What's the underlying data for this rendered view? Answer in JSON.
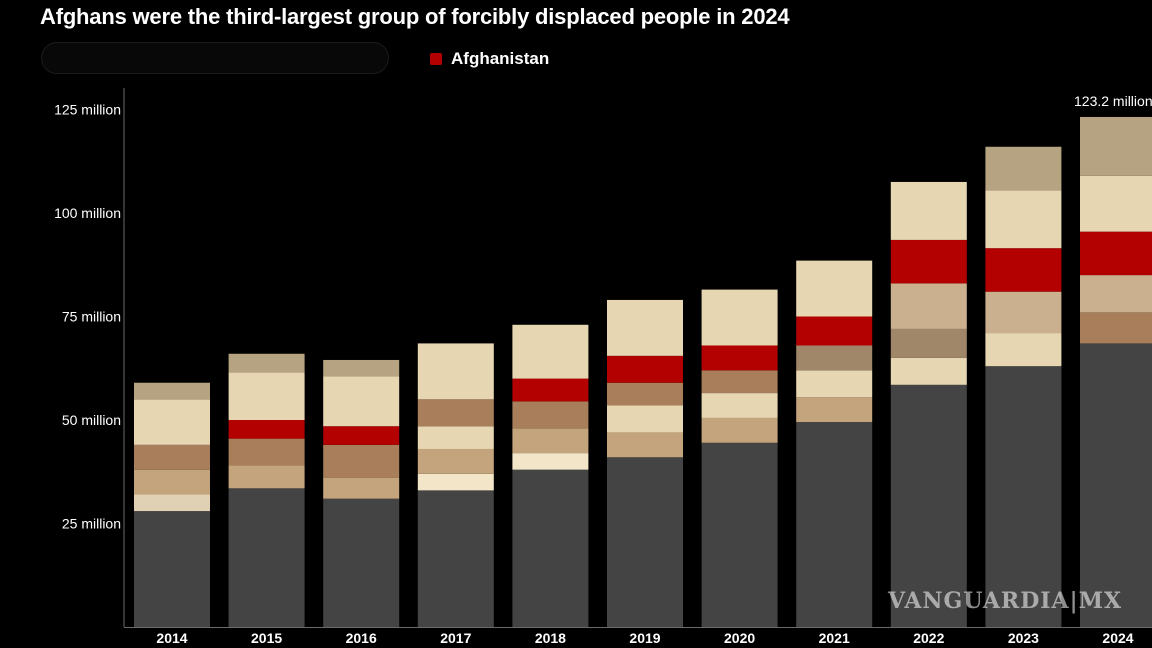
{
  "title": "Afghans were the third-largest group of forcibly displaced people in 2024",
  "legend": {
    "label": "Afghanistan",
    "color": "#b30000",
    "icon": "square-swatch-icon"
  },
  "colors": {
    "background": "#000000",
    "axis": "#6a6a6a",
    "text": "#ffffff"
  },
  "watermark": "VANGUARDIA|MX",
  "chart_data": {
    "type": "bar",
    "stacked": true,
    "title": "Afghans were the third-largest group of forcibly displaced people in 2024",
    "xlabel": "",
    "ylabel": "",
    "ylim": [
      0,
      127
    ],
    "unit": "million",
    "y_ticks": [
      {
        "value": 25,
        "label": "25 million"
      },
      {
        "value": 50,
        "label": "50 million"
      },
      {
        "value": 75,
        "label": "75 million"
      },
      {
        "value": 100,
        "label": "100 million"
      },
      {
        "value": 125,
        "label": "125 million"
      }
    ],
    "categories": [
      "2014",
      "2015",
      "2016",
      "2017",
      "2018",
      "2019",
      "2020",
      "2021",
      "2022",
      "2023",
      "2024"
    ],
    "annotation": {
      "category": "2024",
      "text": "123.2 million"
    },
    "bars": [
      {
        "year": "2014",
        "segments": [
          {
            "v": 28,
            "c": "#444444"
          },
          {
            "v": 4,
            "c": "#e0d0b4"
          },
          {
            "v": 6,
            "c": "#c4a47c"
          },
          {
            "v": 6,
            "c": "#a87f5a"
          },
          {
            "v": 11,
            "c": "#e7d6b2"
          },
          {
            "v": 4,
            "c": "#b5a382"
          }
        ]
      },
      {
        "year": "2015",
        "segments": [
          {
            "v": 33.5,
            "c": "#444444"
          },
          {
            "v": 5.5,
            "c": "#c4a47c"
          },
          {
            "v": 6.5,
            "c": "#a87f5a"
          },
          {
            "v": 4.5,
            "c": "#b30000"
          },
          {
            "v": 11.5,
            "c": "#e7d6b2"
          },
          {
            "v": 4.5,
            "c": "#b5a382"
          }
        ]
      },
      {
        "year": "2016",
        "segments": [
          {
            "v": 31,
            "c": "#444444"
          },
          {
            "v": 5,
            "c": "#c4a47c"
          },
          {
            "v": 8,
            "c": "#a87f5a"
          },
          {
            "v": 4.5,
            "c": "#b30000"
          },
          {
            "v": 12,
            "c": "#e7d6b2"
          },
          {
            "v": 4,
            "c": "#b5a382"
          }
        ]
      },
      {
        "year": "2017",
        "segments": [
          {
            "v": 33,
            "c": "#444444"
          },
          {
            "v": 4,
            "c": "#f3e6c8"
          },
          {
            "v": 6,
            "c": "#c4a47c"
          },
          {
            "v": 5.5,
            "c": "#e7d6b2"
          },
          {
            "v": 6.5,
            "c": "#a87f5a"
          },
          {
            "v": 13.5,
            "c": "#e7d6b2"
          }
        ]
      },
      {
        "year": "2018",
        "segments": [
          {
            "v": 38,
            "c": "#444444"
          },
          {
            "v": 4,
            "c": "#f3e6c8"
          },
          {
            "v": 6,
            "c": "#c4a47c"
          },
          {
            "v": 6.5,
            "c": "#a87f5a"
          },
          {
            "v": 5.5,
            "c": "#b30000"
          },
          {
            "v": 13,
            "c": "#e7d6b2"
          }
        ]
      },
      {
        "year": "2019",
        "segments": [
          {
            "v": 41,
            "c": "#444444"
          },
          {
            "v": 6,
            "c": "#c4a47c"
          },
          {
            "v": 6.5,
            "c": "#e7d6b2"
          },
          {
            "v": 5.5,
            "c": "#a87f5a"
          },
          {
            "v": 6.5,
            "c": "#b30000"
          },
          {
            "v": 13.5,
            "c": "#e7d6b2"
          }
        ]
      },
      {
        "year": "2020",
        "segments": [
          {
            "v": 44.5,
            "c": "#444444"
          },
          {
            "v": 6,
            "c": "#c4a47c"
          },
          {
            "v": 6,
            "c": "#e7d6b2"
          },
          {
            "v": 5.5,
            "c": "#a87f5a"
          },
          {
            "v": 6,
            "c": "#b30000"
          },
          {
            "v": 13.5,
            "c": "#e7d6b2"
          }
        ]
      },
      {
        "year": "2021",
        "segments": [
          {
            "v": 49.5,
            "c": "#444444"
          },
          {
            "v": 6,
            "c": "#c4a47c"
          },
          {
            "v": 6.5,
            "c": "#e7d6b2"
          },
          {
            "v": 6,
            "c": "#a1876a"
          },
          {
            "v": 7,
            "c": "#b30000"
          },
          {
            "v": 13.5,
            "c": "#e7d6b2"
          }
        ]
      },
      {
        "year": "2022",
        "segments": [
          {
            "v": 58.5,
            "c": "#444444"
          },
          {
            "v": 6.5,
            "c": "#e7d6b2"
          },
          {
            "v": 7,
            "c": "#a1876a"
          },
          {
            "v": 11,
            "c": "#cbb08f"
          },
          {
            "v": 10.5,
            "c": "#b30000"
          },
          {
            "v": 14,
            "c": "#e7d6b2"
          }
        ]
      },
      {
        "year": "2023",
        "segments": [
          {
            "v": 63,
            "c": "#444444"
          },
          {
            "v": 8,
            "c": "#e7d6b2"
          },
          {
            "v": 10,
            "c": "#cbb08f"
          },
          {
            "v": 10.5,
            "c": "#b30000"
          },
          {
            "v": 14,
            "c": "#e7d6b2"
          },
          {
            "v": 10.5,
            "c": "#b5a382"
          }
        ]
      },
      {
        "year": "2024",
        "segments": [
          {
            "v": 68.5,
            "c": "#444444"
          },
          {
            "v": 7.5,
            "c": "#a87f5a"
          },
          {
            "v": 9,
            "c": "#cbb08f"
          },
          {
            "v": 10.5,
            "c": "#b30000"
          },
          {
            "v": 13.5,
            "c": "#e7d6b2"
          },
          {
            "v": 14.2,
            "c": "#b5a382"
          }
        ]
      }
    ]
  }
}
